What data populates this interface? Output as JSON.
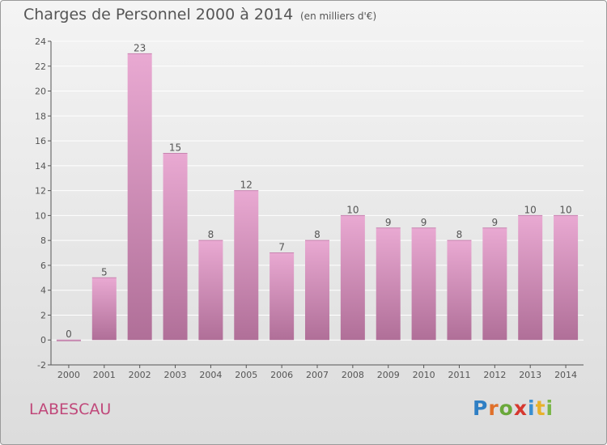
{
  "header": {
    "title": "Charges de Personnel 2000 à 2014",
    "subtitle": "(en milliers d'€)"
  },
  "footer": {
    "commune": "LABESCAU",
    "logo_letters": [
      "P",
      "r",
      "o",
      "x",
      "i",
      "t",
      "i"
    ]
  },
  "colors": {
    "bar_top": "#e9a9d2",
    "bar_bottom": "#b06f98",
    "axis": "#555555",
    "grid": "#ffffff",
    "commune": "#c0487a"
  },
  "chart_data": {
    "type": "bar",
    "title": "Charges de Personnel 2000 à 2014",
    "subtitle": "(en milliers d'€)",
    "categories": [
      "2000",
      "2001",
      "2002",
      "2003",
      "2004",
      "2005",
      "2006",
      "2007",
      "2008",
      "2009",
      "2010",
      "2011",
      "2012",
      "2013",
      "2014"
    ],
    "values": [
      0,
      5,
      23,
      15,
      8,
      12,
      7,
      8,
      10,
      9,
      9,
      8,
      9,
      10,
      10
    ],
    "data_labels": [
      "0",
      "5",
      "23",
      "15",
      "8",
      "12",
      "7",
      "8",
      "10",
      "9",
      "9",
      "8",
      "9",
      "10",
      "10"
    ],
    "ylim": [
      -2,
      24
    ],
    "yticks": [
      -2,
      0,
      2,
      4,
      6,
      8,
      10,
      12,
      14,
      16,
      18,
      20,
      22,
      24
    ],
    "grid": true,
    "legend": "none"
  }
}
